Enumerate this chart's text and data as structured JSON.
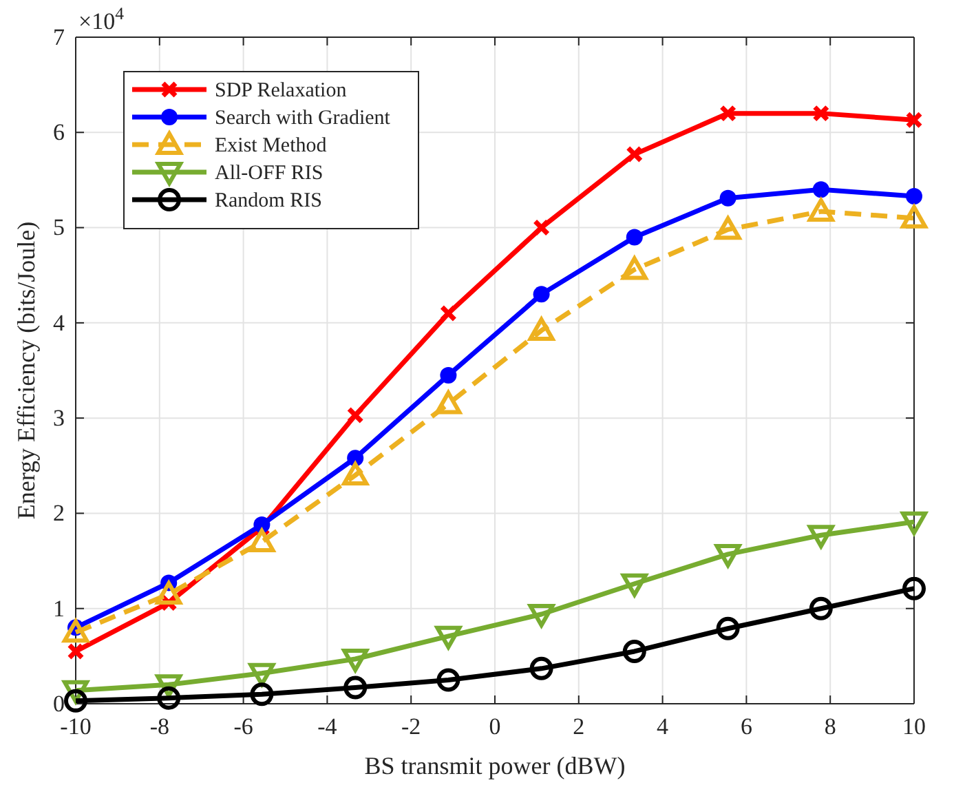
{
  "chart_data": {
    "type": "line",
    "xlabel": "BS transmit power (dBW)",
    "ylabel": "Energy Efficiency (bits/Joule)",
    "annotations": [
      "×10$^{4}$"
    ],
    "x": [
      -10,
      -7.78,
      -5.56,
      -3.33,
      -1.11,
      1.11,
      3.33,
      5.56,
      7.78,
      10
    ],
    "xlim": [
      -10,
      10
    ],
    "xticks": [
      -10,
      -8,
      -6,
      -4,
      -2,
      0,
      2,
      4,
      6,
      8,
      10
    ],
    "ylim": [
      0,
      7
    ],
    "yticks": [
      0,
      1,
      2,
      3,
      4,
      5,
      6,
      7
    ],
    "grid": true,
    "legend": "top left",
    "series": [
      {
        "name": "SDP Relaxation",
        "color": "#ff0000",
        "marker": "cross",
        "line_style": "solid",
        "values": [
          0.55,
          1.06,
          1.85,
          3.03,
          4.1,
          5.0,
          5.77,
          6.2,
          6.2,
          6.13
        ]
      },
      {
        "name": "Search with Gradient",
        "color": "#0000ff",
        "marker": "circle",
        "line_style": "solid",
        "values": [
          0.8,
          1.27,
          1.88,
          2.58,
          3.45,
          4.3,
          4.9,
          5.31,
          5.4,
          5.33
        ]
      },
      {
        "name": "Exist Method",
        "color": "#edb120",
        "marker": "triangle",
        "line_style": "dashed",
        "values": [
          0.75,
          1.15,
          1.7,
          2.4,
          3.15,
          3.92,
          4.56,
          4.98,
          5.17,
          5.1
        ]
      },
      {
        "name": "All-OFF RIS",
        "color": "#77ac30",
        "marker": "triangle-down",
        "line_style": "solid",
        "values": [
          0.14,
          0.2,
          0.32,
          0.47,
          0.71,
          0.94,
          1.26,
          1.57,
          1.77,
          1.91
        ]
      },
      {
        "name": "Random RIS",
        "color": "#000000",
        "marker": "circle-open",
        "line_style": "solid",
        "values": [
          0.03,
          0.06,
          0.1,
          0.17,
          0.25,
          0.37,
          0.55,
          0.79,
          1.0,
          1.21
        ]
      }
    ]
  }
}
